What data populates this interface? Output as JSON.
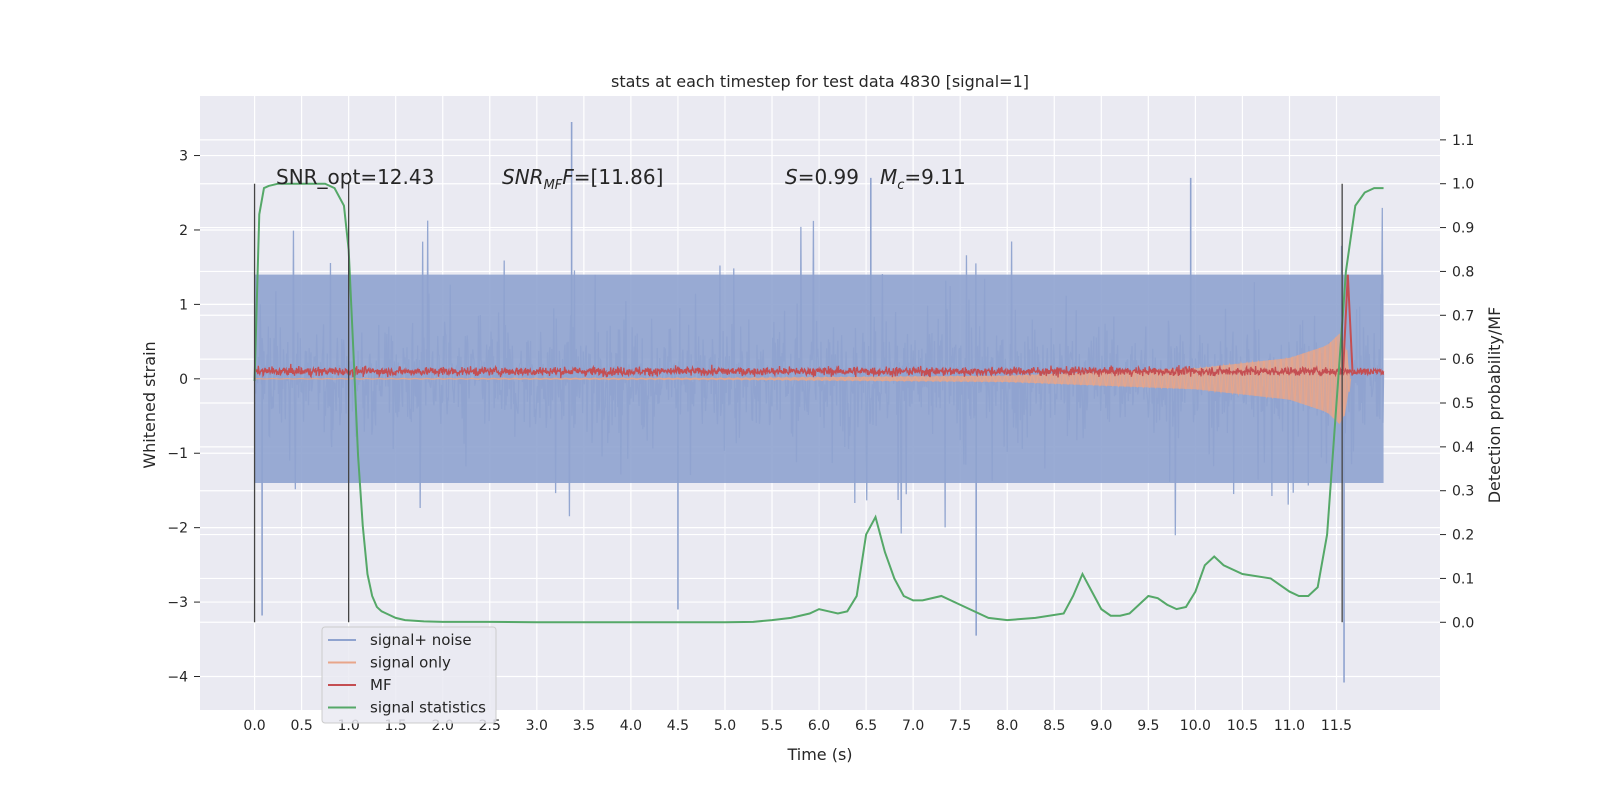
{
  "chart_data": {
    "type": "line",
    "title": "stats at each timestep for test data 4830 [signal=1]",
    "xlabel": "Time (s)",
    "ylabel": "Whitened strain",
    "y2label": "Detection probability/MF",
    "xlim": [
      -0.58,
      12.6
    ],
    "ylim": [
      -4.45,
      3.8
    ],
    "y2lim": [
      -0.2,
      1.2
    ],
    "x_ticks": [
      "0.0",
      "0.5",
      "1.0",
      "1.5",
      "2.0",
      "2.5",
      "3.0",
      "3.5",
      "4.0",
      "4.5",
      "5.0",
      "5.5",
      "6.0",
      "6.5",
      "7.0",
      "7.5",
      "8.0",
      "8.5",
      "9.0",
      "9.5",
      "10.0",
      "10.5",
      "11.0",
      "11.5"
    ],
    "y_ticks": [
      "3",
      "2",
      "1",
      "0",
      "−1",
      "−2",
      "−3",
      "−4"
    ],
    "y2_ticks": [
      "1.1",
      "1.0",
      "0.9",
      "0.8",
      "0.7",
      "0.6",
      "0.5",
      "0.4",
      "0.3",
      "0.2",
      "0.1",
      "0.0"
    ],
    "grid": true,
    "legend_position": "lower-left",
    "annotations": {
      "snr_opt": "SNR_opt=12.43",
      "snr_mf_name": "SNR",
      "snr_mf_sub": "MF",
      "snr_mf_value": "=[11.86]",
      "s_name": "S",
      "s_value": "=0.99",
      "mc_name": "M",
      "mc_sub": "c",
      "mc_value": "=9.11"
    },
    "vertical_markers": [
      0.0,
      1.0,
      11.56
    ],
    "series": [
      {
        "name": "signal+ noise",
        "color": "#8fa3cf",
        "kind": "noise",
        "x_range": [
          0.0,
          12.0
        ],
        "envelope": [
          -1.4,
          1.4
        ],
        "spikes": [
          [
            3.37,
            3.45
          ],
          [
            11.58,
            -4.08
          ],
          [
            0.08,
            -3.18
          ],
          [
            7.67,
            -3.45
          ],
          [
            9.95,
            2.7
          ],
          [
            6.55,
            2.7
          ],
          [
            4.5,
            -3.1
          ]
        ]
      },
      {
        "name": "signal only",
        "color": "#e8a58a",
        "kind": "chirp",
        "amplitude_by_time": [
          [
            0.0,
            0.002
          ],
          [
            5.0,
            0.008
          ],
          [
            8.0,
            0.03
          ],
          [
            10.0,
            0.1
          ],
          [
            11.0,
            0.2
          ],
          [
            11.4,
            0.32
          ],
          [
            11.55,
            0.45
          ],
          [
            11.62,
            0.25
          ],
          [
            11.65,
            0.0
          ]
        ]
      },
      {
        "name": "MF",
        "color": "#c44e52",
        "kind": "band",
        "center": 0.1,
        "amplitude": 0.09,
        "peak": [
          11.62,
          1.4
        ]
      },
      {
        "name": "signal statistics",
        "color": "#55a868",
        "kind": "line",
        "axis": "y2",
        "x": [
          0.0,
          0.05,
          0.1,
          0.15,
          0.25,
          0.4,
          0.6,
          0.75,
          0.85,
          0.95,
          1.0,
          1.05,
          1.1,
          1.15,
          1.2,
          1.25,
          1.3,
          1.35,
          1.4,
          1.5,
          1.6,
          1.8,
          2.0,
          2.5,
          3.0,
          3.5,
          4.0,
          4.5,
          5.0,
          5.3,
          5.5,
          5.7,
          5.9,
          6.0,
          6.1,
          6.2,
          6.3,
          6.4,
          6.5,
          6.6,
          6.7,
          6.8,
          6.9,
          7.0,
          7.1,
          7.3,
          7.5,
          7.8,
          8.0,
          8.3,
          8.6,
          8.7,
          8.8,
          8.9,
          9.0,
          9.1,
          9.2,
          9.3,
          9.4,
          9.5,
          9.6,
          9.7,
          9.8,
          9.9,
          10.0,
          10.1,
          10.2,
          10.3,
          10.5,
          10.8,
          11.0,
          11.1,
          11.2,
          11.3,
          11.4,
          11.5,
          11.6,
          11.7,
          11.8,
          11.9,
          12.0
        ],
        "y": [
          0.55,
          0.93,
          0.99,
          0.995,
          1.0,
          1.0,
          1.0,
          1.0,
          0.99,
          0.95,
          0.85,
          0.62,
          0.38,
          0.22,
          0.11,
          0.06,
          0.035,
          0.025,
          0.02,
          0.01,
          0.005,
          0.002,
          0.001,
          0.001,
          0.0,
          0.0,
          0.0,
          0.0,
          0.0,
          0.001,
          0.005,
          0.01,
          0.02,
          0.03,
          0.025,
          0.02,
          0.025,
          0.06,
          0.2,
          0.24,
          0.16,
          0.1,
          0.06,
          0.05,
          0.05,
          0.06,
          0.04,
          0.01,
          0.005,
          0.01,
          0.02,
          0.06,
          0.11,
          0.07,
          0.03,
          0.015,
          0.015,
          0.02,
          0.04,
          0.06,
          0.055,
          0.04,
          0.03,
          0.035,
          0.07,
          0.13,
          0.15,
          0.13,
          0.11,
          0.1,
          0.07,
          0.06,
          0.06,
          0.08,
          0.2,
          0.5,
          0.8,
          0.95,
          0.98,
          0.99,
          0.99
        ]
      }
    ]
  }
}
